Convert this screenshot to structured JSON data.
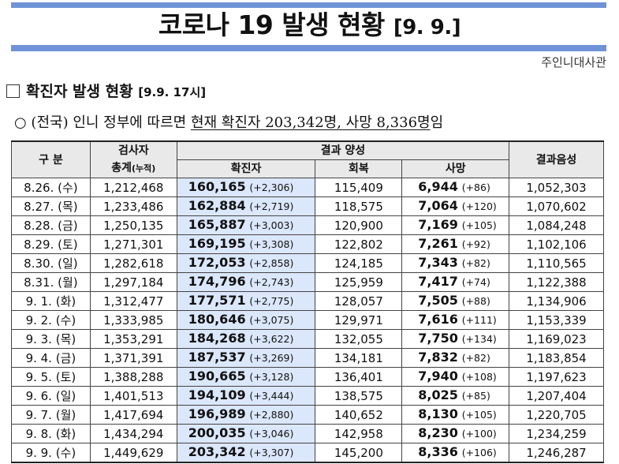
{
  "header": {
    "title_main": "코로나 19 발생 현황",
    "title_date": "[9. 9.]",
    "organization": "주인니대사관"
  },
  "section": {
    "title": "확진자 발생 현황",
    "subtitle": "[9.9. 17시]"
  },
  "summary": {
    "prefix": "○ (전국) 인니 정부에 따르면 ",
    "highlight": "현재 확진자 203,342명, 사망 8,336명",
    "suffix": "임"
  },
  "table": {
    "headers": {
      "category": "구 분",
      "tests_line1": "검사자",
      "tests_line2": "총계",
      "tests_note": "(누적)",
      "positive_group": "결과 양성",
      "confirmed": "확진자",
      "recovered": "회복",
      "deaths": "사망",
      "negative": "결과음성"
    },
    "rows": [
      {
        "date": "8.26. (수)",
        "tests": "1,212,468",
        "confirmed": "160,165",
        "confirmed_inc": "(+2,306)",
        "recovered": "115,409",
        "deaths": "6,944",
        "deaths_inc": "(+86)",
        "negative": "1,052,303"
      },
      {
        "date": "8.27. (목)",
        "tests": "1,233,486",
        "confirmed": "162,884",
        "confirmed_inc": "(+2,719)",
        "recovered": "118,575",
        "deaths": "7,064",
        "deaths_inc": "(+120)",
        "negative": "1,070,602"
      },
      {
        "date": "8.28. (금)",
        "tests": "1,250,135",
        "confirmed": "165,887",
        "confirmed_inc": "(+3,003)",
        "recovered": "120,900",
        "deaths": "7,169",
        "deaths_inc": "(+105)",
        "negative": "1,084,248"
      },
      {
        "date": "8.29. (토)",
        "tests": "1,271,301",
        "confirmed": "169,195",
        "confirmed_inc": "(+3,308)",
        "recovered": "122,802",
        "deaths": "7,261",
        "deaths_inc": "(+92)",
        "negative": "1,102,106"
      },
      {
        "date": "8.30. (일)",
        "tests": "1,282,618",
        "confirmed": "172,053",
        "confirmed_inc": "(+2,858)",
        "recovered": "124,185",
        "deaths": "7,343",
        "deaths_inc": "(+82)",
        "negative": "1,110,565"
      },
      {
        "date": "8.31. (월)",
        "tests": "1,297,184",
        "confirmed": "174,796",
        "confirmed_inc": "(+2,743)",
        "recovered": "125,959",
        "deaths": "7,417",
        "deaths_inc": "(+74)",
        "negative": "1,122,388"
      },
      {
        "date": "9. 1. (화)",
        "tests": "1,312,477",
        "confirmed": "177,571",
        "confirmed_inc": "(+2,775)",
        "recovered": "128,057",
        "deaths": "7,505",
        "deaths_inc": "(+88)",
        "negative": "1,134,906"
      },
      {
        "date": "9. 2. (수)",
        "tests": "1,333,985",
        "confirmed": "180,646",
        "confirmed_inc": "(+3,075)",
        "recovered": "129,971",
        "deaths": "7,616",
        "deaths_inc": "(+111)",
        "negative": "1,153,339"
      },
      {
        "date": "9. 3. (목)",
        "tests": "1,353,291",
        "confirmed": "184,268",
        "confirmed_inc": "(+3,622)",
        "recovered": "132,055",
        "deaths": "7,750",
        "deaths_inc": "(+134)",
        "negative": "1,169,023"
      },
      {
        "date": "9. 4. (금)",
        "tests": "1,371,391",
        "confirmed": "187,537",
        "confirmed_inc": "(+3,269)",
        "recovered": "134,181",
        "deaths": "7,832",
        "deaths_inc": "(+82)",
        "negative": "1,183,854"
      },
      {
        "date": "9. 5. (토)",
        "tests": "1,388,288",
        "confirmed": "190,665",
        "confirmed_inc": "(+3,128)",
        "recovered": "136,401",
        "deaths": "7,940",
        "deaths_inc": "(+108)",
        "negative": "1,197,623"
      },
      {
        "date": "9. 6. (일)",
        "tests": "1,401,513",
        "confirmed": "194,109",
        "confirmed_inc": "(+3,444)",
        "recovered": "138,575",
        "deaths": "8,025",
        "deaths_inc": "(+85)",
        "negative": "1,207,404"
      },
      {
        "date": "9. 7. (월)",
        "tests": "1,417,694",
        "confirmed": "196,989",
        "confirmed_inc": "(+2,880)",
        "recovered": "140,652",
        "deaths": "8,130",
        "deaths_inc": "(+105)",
        "negative": "1,220,705"
      },
      {
        "date": "9. 8. (화)",
        "tests": "1,434,294",
        "confirmed": "200,035",
        "confirmed_inc": "(+3,046)",
        "recovered": "142,958",
        "deaths": "8,230",
        "deaths_inc": "(+100)",
        "negative": "1,234,259"
      },
      {
        "date": "9. 9. (수)",
        "tests": "1,449,629",
        "confirmed": "203,342",
        "confirmed_inc": "(+3,307)",
        "recovered": "145,200",
        "deaths": "8,336",
        "deaths_inc": "(+106)",
        "negative": "1,246,287"
      }
    ]
  }
}
